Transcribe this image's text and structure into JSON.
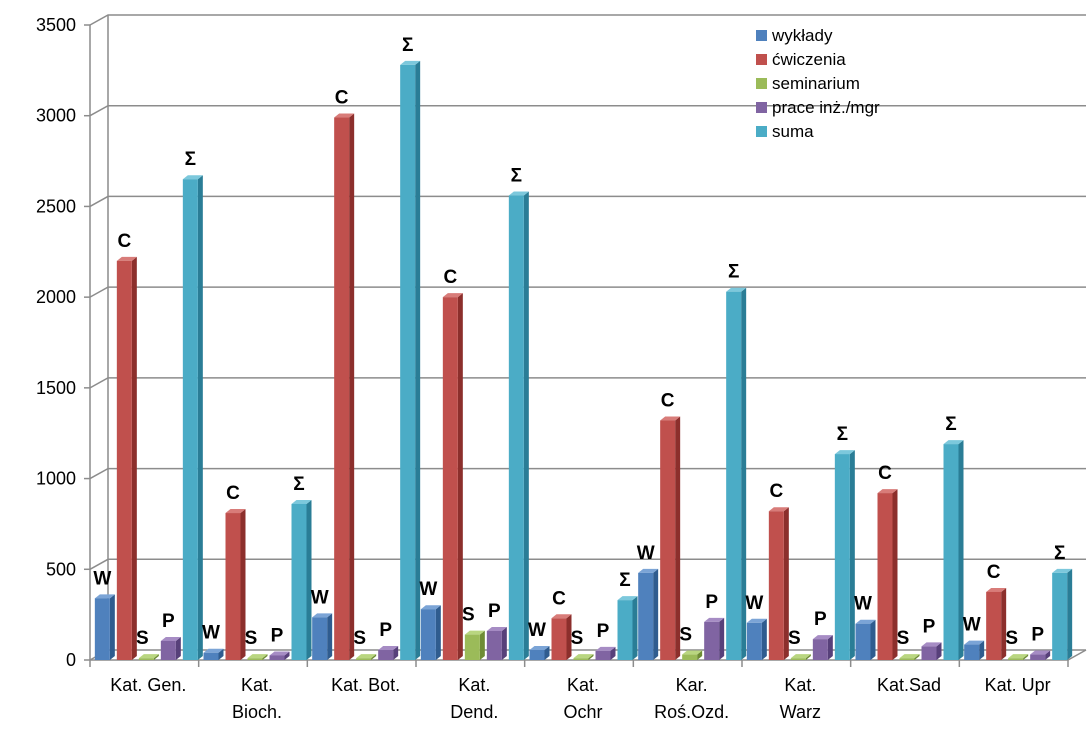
{
  "chart_data": {
    "type": "bar",
    "title": "",
    "xlabel": "",
    "ylabel": "",
    "ylim": [
      0,
      3500
    ],
    "yticks": [
      0,
      500,
      1000,
      1500,
      2000,
      2500,
      3000,
      3500
    ],
    "grid": true,
    "legend_position": "top-right",
    "categories": [
      [
        "Kat. Gen."
      ],
      [
        "Kat.",
        "Bioch."
      ],
      [
        "Kat. Bot."
      ],
      [
        "Kat.",
        "Dend."
      ],
      [
        "Kat.",
        "Ochr"
      ],
      [
        "Kar.",
        "Roś.Ozd."
      ],
      [
        "Kat.",
        "Warz"
      ],
      [
        "Kat.Sad"
      ],
      [
        "Kat. Upr"
      ]
    ],
    "series": [
      {
        "name": "wykłady",
        "label": "W",
        "color": "#4f81bd",
        "dark": "#2f5c8f",
        "light": "#7ba4d6",
        "values": [
          340,
          40,
          235,
          280,
          55,
          480,
          205,
          200,
          85
        ]
      },
      {
        "name": "ćwiczenia",
        "label": "C",
        "color": "#c0504d",
        "dark": "#8c2f2c",
        "light": "#d87c79",
        "values": [
          2200,
          810,
          2990,
          2000,
          230,
          1320,
          820,
          920,
          375
        ]
      },
      {
        "name": "seminarium",
        "label": "S",
        "color": "#9bbb59",
        "dark": "#6e8c34",
        "light": "#b9d680",
        "values": [
          10,
          10,
          10,
          140,
          10,
          30,
          10,
          10,
          10
        ]
      },
      {
        "name": "prace inż./mgr",
        "label": "P",
        "color": "#8064a2",
        "dark": "#57407a",
        "light": "#a68cc4",
        "values": [
          105,
          25,
          55,
          160,
          50,
          210,
          115,
          75,
          30
        ]
      },
      {
        "name": "suma",
        "label": "Σ",
        "color": "#4bacc6",
        "dark": "#2a7d96",
        "light": "#7cc8dc",
        "values": [
          2650,
          860,
          3280,
          2560,
          330,
          2030,
          1135,
          1190,
          480
        ]
      }
    ]
  }
}
